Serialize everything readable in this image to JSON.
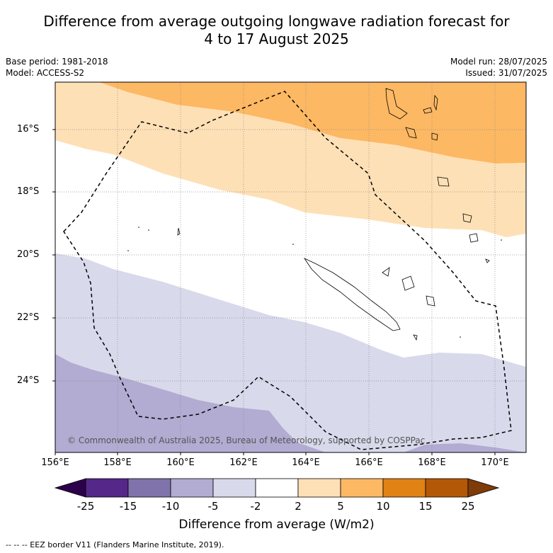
{
  "title_line1": "Difference from average outgoing longwave radiation forecast for",
  "title_line2": "4 to 17 August 2025",
  "base_period": "Base period: 1981-2018",
  "model": "Model: ACCESS-S2",
  "model_run": "Model run: 28/07/2025",
  "issued": "Issued: 31/07/2025",
  "copyright": "© Commonwealth of Australia 2025, Bureau of Meteorology, supported by COSPPac",
  "lat_labels": [
    "16°S",
    "18°S",
    "20°S",
    "22°S",
    "24°S"
  ],
  "lon_labels": [
    "156°E",
    "158°E",
    "160°E",
    "162°E",
    "164°E",
    "166°E",
    "168°E",
    "170°E"
  ],
  "colorbar": {
    "title": "Difference from average (W/m2)",
    "ticks": [
      "-25",
      "-15",
      "-10",
      "-5",
      "-2",
      "2",
      "5",
      "10",
      "15",
      "25"
    ],
    "colors": [
      "#2d004b",
      "#542788",
      "#8073ac",
      "#b2abd2",
      "#d8daeb",
      "#ffffff",
      "#fee0b6",
      "#fdb863",
      "#e08214",
      "#b35806",
      "#7f3b08"
    ]
  },
  "eez_note": "--  --  -- EEZ border V11 (Flanders Marine Institute, 2019)."
}
